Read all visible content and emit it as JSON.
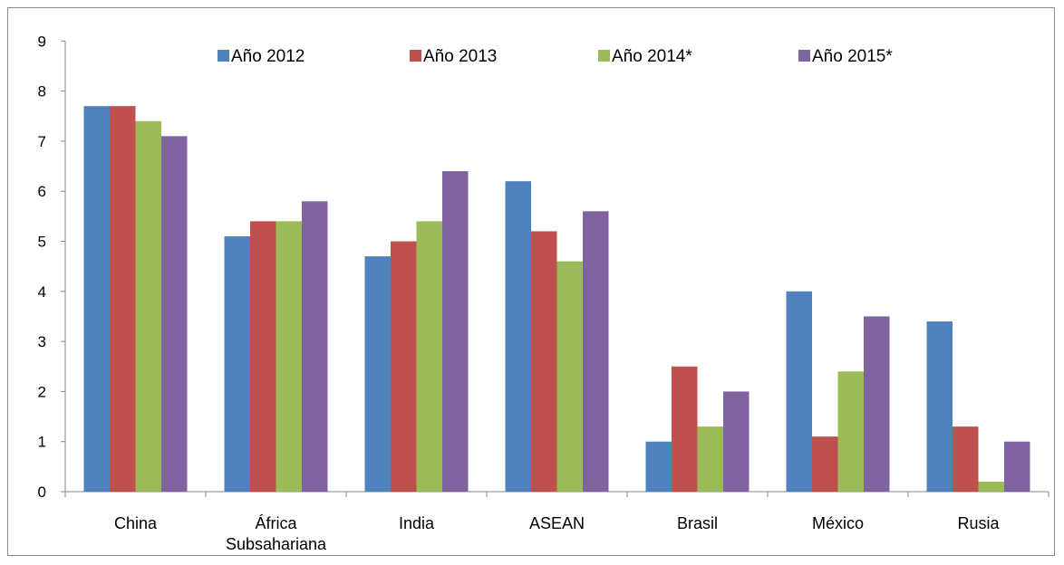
{
  "chart_data": {
    "type": "bar",
    "categories": [
      "China",
      "África Subsahariana",
      "India",
      "ASEAN",
      "Brasil",
      "México",
      "Rusia"
    ],
    "category_label_lines": [
      [
        "China"
      ],
      [
        "África",
        "Subsahariana"
      ],
      [
        "India"
      ],
      [
        "ASEAN"
      ],
      [
        "Brasil"
      ],
      [
        "México"
      ],
      [
        "Rusia"
      ]
    ],
    "series": [
      {
        "name": "Año 2012",
        "color": "#4f81bd",
        "values": [
          7.7,
          5.1,
          4.7,
          6.2,
          1.0,
          4.0,
          3.4
        ]
      },
      {
        "name": "Año 2013",
        "color": "#c0504d",
        "values": [
          7.7,
          5.4,
          5.0,
          5.2,
          2.5,
          1.1,
          1.3
        ]
      },
      {
        "name": "Año 2014*",
        "color": "#9bbb59",
        "values": [
          7.4,
          5.4,
          5.4,
          4.6,
          1.3,
          2.4,
          0.2
        ]
      },
      {
        "name": "Año 2015*",
        "color": "#8064a2",
        "values": [
          7.1,
          5.8,
          6.4,
          5.6,
          2.0,
          3.5,
          1.0
        ]
      }
    ],
    "y_ticks": [
      "0",
      "1",
      "2",
      "3",
      "4",
      "5",
      "6",
      "7",
      "8",
      "9"
    ],
    "ylim": [
      0,
      9
    ],
    "title": "",
    "xlabel": "",
    "ylabel": "",
    "grid": false,
    "legend_position": "top"
  }
}
